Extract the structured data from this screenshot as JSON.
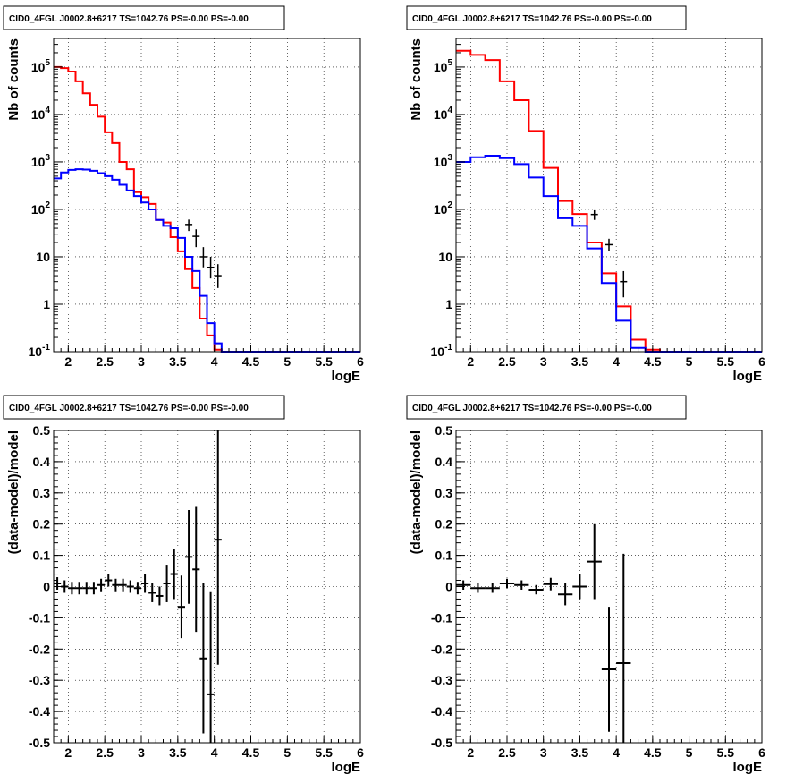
{
  "chart_data": [
    {
      "type": "line",
      "title": "CID0_4FGL J0002.8+6217 TS=1042.76 PS=-0.00 PS=-0.00",
      "xlabel": "logE",
      "ylabel": "Nb of counts",
      "xlim": [
        1.8,
        6.0
      ],
      "ylim": [
        0.1,
        400000
      ],
      "yscale": "log",
      "grid": true,
      "x_ticks": [
        "2",
        "2.5",
        "3",
        "3.5",
        "4",
        "4.5",
        "5",
        "5.5",
        "6"
      ],
      "y_ticks": [
        "10^-1",
        "1",
        "10",
        "10^2",
        "10^3",
        "10^4",
        "10^5"
      ],
      "bin_edges": [
        1.8,
        1.9,
        2.0,
        2.1,
        2.2,
        2.3,
        2.4,
        2.5,
        2.6,
        2.7,
        2.8,
        2.9,
        3.0,
        3.1,
        3.2,
        3.3,
        3.4,
        3.5,
        3.6,
        3.7,
        3.8,
        3.9,
        4.0,
        4.1,
        4.2,
        4.3,
        4.4,
        4.5,
        4.6,
        4.7,
        4.8,
        4.9,
        5.0,
        5.1,
        5.2,
        5.3,
        5.4,
        5.5,
        5.6,
        5.7,
        5.8,
        5.9,
        6.0
      ],
      "series": [
        {
          "kind": "step",
          "color": "#ff0000",
          "values": [
            100000,
            95000,
            80000,
            50000,
            28000,
            16000,
            9000,
            4200,
            2500,
            1000,
            700,
            230,
            180,
            130,
            60,
            53,
            26,
            13,
            5.5,
            2.2,
            0.5,
            0.22,
            0.11,
            0.1,
            0.1,
            0.1,
            0.1,
            0.1,
            0.1,
            0.1,
            0.1,
            0.1,
            0.1,
            0.1,
            0.1,
            0.1,
            0.1,
            0.1,
            0.1,
            0.1,
            0.1,
            0.1
          ]
        },
        {
          "kind": "step",
          "color": "#0000ff",
          "values": [
            450,
            600,
            680,
            700,
            690,
            650,
            580,
            500,
            420,
            330,
            250,
            190,
            140,
            100,
            60,
            45,
            40,
            25,
            10,
            5,
            1.5,
            0.4,
            0.15,
            0.1,
            0.1,
            0.1,
            0.1,
            0.1,
            0.1,
            0.1,
            0.1,
            0.1,
            0.1,
            0.1,
            0.1,
            0.1,
            0.1,
            0.1,
            0.1,
            0.1,
            0.1,
            0.1
          ]
        },
        {
          "kind": "points",
          "color": "#000000",
          "x": [
            3.65,
            3.75,
            3.85,
            3.95,
            4.05
          ],
          "y": [
            48,
            27,
            10,
            6,
            4
          ],
          "yerr_low": [
            13,
            11,
            4,
            2.5,
            1.8
          ],
          "yerr_high": [
            13,
            11,
            6,
            4,
            3
          ]
        }
      ]
    },
    {
      "type": "line",
      "title": "CID0_4FGL J0002.8+6217 TS=1042.76 PS=-0.00 PS=-0.00",
      "xlabel": "logE",
      "ylabel": "Nb of counts",
      "xlim": [
        1.8,
        6.0
      ],
      "ylim": [
        0.1,
        400000
      ],
      "yscale": "log",
      "grid": true,
      "x_ticks": [
        "2",
        "2.5",
        "3",
        "3.5",
        "4",
        "4.5",
        "5",
        "5.5",
        "6"
      ],
      "y_ticks": [
        "10^-1",
        "1",
        "10",
        "10^2",
        "10^3",
        "10^4",
        "10^5"
      ],
      "bin_edges": [
        1.8,
        2.0,
        2.2,
        2.4,
        2.6,
        2.8,
        3.0,
        3.2,
        3.4,
        3.6,
        3.8,
        4.0,
        4.2,
        4.4,
        4.6,
        4.8,
        5.0,
        5.2,
        5.4,
        5.6,
        5.8,
        6.0
      ],
      "series": [
        {
          "kind": "step",
          "color": "#ff0000",
          "values": [
            220000,
            180000,
            140000,
            50000,
            20000,
            4500,
            750,
            150,
            80,
            20,
            4.5,
            0.9,
            0.18,
            0.11,
            0.1,
            0.1,
            0.1,
            0.1,
            0.1,
            0.1,
            0.1
          ]
        },
        {
          "kind": "step",
          "color": "#0000ff",
          "values": [
            1000,
            1250,
            1350,
            1200,
            900,
            470,
            190,
            65,
            45,
            15,
            2.8,
            0.45,
            0.12,
            0.1,
            0.1,
            0.1,
            0.1,
            0.1,
            0.1,
            0.1,
            0.1
          ]
        },
        {
          "kind": "points",
          "color": "#000000",
          "x": [
            3.7,
            3.9,
            4.1
          ],
          "y": [
            78,
            18,
            3
          ],
          "yerr_low": [
            18,
            5,
            1.6
          ],
          "yerr_high": [
            18,
            6,
            2
          ]
        }
      ]
    },
    {
      "type": "scatter",
      "title": "CID0_4FGL J0002.8+6217 TS=1042.76 PS=-0.00 PS=-0.00",
      "xlabel": "logE",
      "ylabel": "(data-model)/model",
      "xlim": [
        1.8,
        6.0
      ],
      "ylim": [
        -0.5,
        0.5
      ],
      "grid": true,
      "x_ticks": [
        "2",
        "2.5",
        "3",
        "3.5",
        "4",
        "4.5",
        "5",
        "5.5",
        "6"
      ],
      "y_ticks": [
        "-0.5",
        "-0.4",
        "-0.3",
        "-0.2",
        "-0.1",
        "0",
        "0.1",
        "0.2",
        "0.3",
        "0.4",
        "0.5"
      ],
      "series": [
        {
          "kind": "errorbars",
          "color": "#000000",
          "x": [
            1.85,
            1.95,
            2.05,
            2.15,
            2.25,
            2.35,
            2.45,
            2.55,
            2.65,
            2.75,
            2.85,
            2.95,
            3.05,
            3.15,
            3.25,
            3.35,
            3.45,
            3.55,
            3.65,
            3.75,
            3.85,
            3.95,
            4.05
          ],
          "y": [
            0.01,
            0.0,
            -0.005,
            -0.005,
            -0.005,
            -0.005,
            0.005,
            0.02,
            0.005,
            0.005,
            0.0,
            -0.005,
            0.01,
            -0.02,
            -0.03,
            0.01,
            0.04,
            -0.065,
            0.095,
            0.055,
            -0.23,
            -0.345,
            0.15
          ],
          "yerr": [
            0.02,
            0.02,
            0.02,
            0.02,
            0.02,
            0.02,
            0.02,
            0.02,
            0.02,
            0.02,
            0.02,
            0.02,
            0.03,
            0.03,
            0.03,
            0.06,
            0.08,
            0.1,
            0.15,
            0.2,
            0.24,
            0.33,
            0.4
          ]
        }
      ]
    },
    {
      "type": "scatter",
      "title": "CID0_4FGL J0002.8+6217 TS=1042.76 PS=-0.00 PS=-0.00",
      "xlabel": "logE",
      "ylabel": "(data-model)/model",
      "xlim": [
        1.8,
        6.0
      ],
      "ylim": [
        -0.5,
        0.5
      ],
      "grid": true,
      "x_ticks": [
        "2",
        "2.5",
        "3",
        "3.5",
        "4",
        "4.5",
        "5",
        "5.5",
        "6"
      ],
      "y_ticks": [
        "-0.5",
        "-0.4",
        "-0.3",
        "-0.2",
        "-0.1",
        "0",
        "0.1",
        "0.2",
        "0.3",
        "0.4",
        "0.5"
      ],
      "series": [
        {
          "kind": "errorbars",
          "color": "#000000",
          "x": [
            1.9,
            2.1,
            2.3,
            2.5,
            2.7,
            2.9,
            3.1,
            3.3,
            3.5,
            3.7,
            3.9,
            4.1
          ],
          "y": [
            0.005,
            -0.005,
            -0.005,
            0.01,
            0.005,
            -0.01,
            0.008,
            -0.025,
            0.0,
            0.08,
            -0.265,
            -0.245
          ],
          "yerr": [
            0.015,
            0.015,
            0.015,
            0.015,
            0.015,
            0.015,
            0.02,
            0.035,
            0.04,
            0.12,
            0.2,
            0.35
          ]
        }
      ]
    }
  ]
}
